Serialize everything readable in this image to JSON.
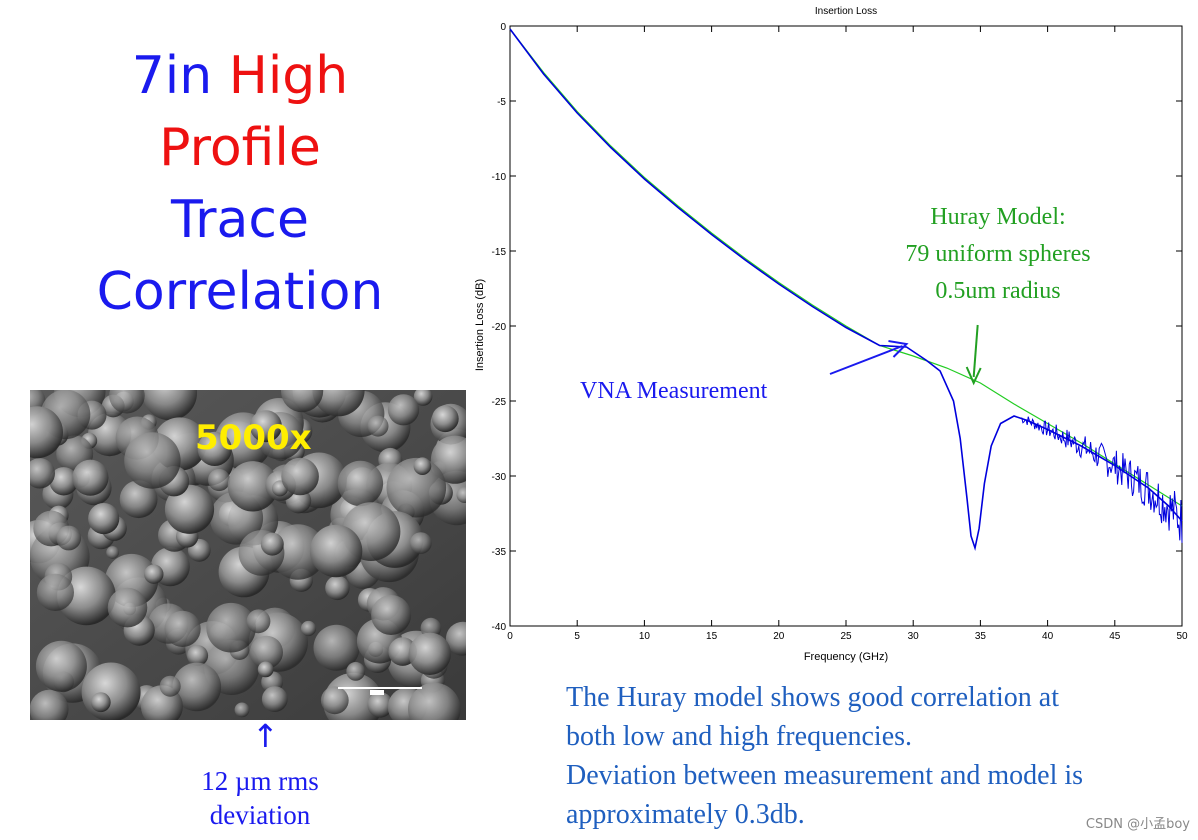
{
  "slide": {
    "title_line1_a": "7in",
    "title_line1_b": "High",
    "title_line2": "Profile",
    "title_line3": "Trace",
    "title_line4": "Correlation",
    "magnification": "5000x",
    "deviation_line1": "12 µm rms",
    "deviation_line2": "deviation",
    "caption_line1": "The Huray model shows good correlation at",
    "caption_line2": "both low and high frequencies.",
    "caption_line3": "Deviation between measurement and model is",
    "caption_line4": "approximately 0.3db.",
    "watermark": "CSDN @小孟boy"
  },
  "chart_data": {
    "type": "line",
    "title": "Insertion Loss",
    "xlabel": "Frequency (GHz)",
    "ylabel": "Insertion Loss (dB)",
    "xlim": [
      0,
      50
    ],
    "ylim": [
      -40,
      0
    ],
    "xticks": [
      0,
      5,
      10,
      15,
      20,
      25,
      30,
      35,
      40,
      45,
      50
    ],
    "yticks": [
      0,
      -5,
      -10,
      -15,
      -20,
      -25,
      -30,
      -35,
      -40
    ],
    "grid": false,
    "colors": {
      "measurement": "#0000dd",
      "model": "#22cc22"
    },
    "annotations": [
      {
        "lines": [
          "Huray Model:",
          "79 uniform spheres",
          "0.5um radius"
        ],
        "color": "#22a022",
        "arrow_to": [
          34.5,
          -23.8
        ]
      },
      {
        "lines": [
          "VNA Measurement"
        ],
        "color": "#1a1aee",
        "arrow_to": [
          29.5,
          -21.2
        ]
      }
    ],
    "series": [
      {
        "key": "model",
        "x": [
          0,
          2.5,
          5,
          7.5,
          10,
          12.5,
          15,
          17.5,
          20,
          22.5,
          25,
          27.5,
          30,
          32.5,
          35,
          37.5,
          40,
          42.5,
          45,
          47.5,
          50
        ],
        "y": [
          -0.2,
          -3.1,
          -5.7,
          -8.0,
          -10.1,
          -12.0,
          -13.8,
          -15.5,
          -17.1,
          -18.6,
          -20.0,
          -21.3,
          -22.0,
          -22.8,
          -23.8,
          -25.2,
          -26.5,
          -27.8,
          -29.2,
          -30.6,
          -32.0
        ]
      },
      {
        "key": "measurement",
        "x": [
          0,
          2.5,
          5,
          7.5,
          10,
          12.5,
          15,
          17.5,
          20,
          22.5,
          25,
          27.5,
          29.5,
          31,
          32,
          33,
          33.5,
          34,
          34.3,
          34.6,
          34.9,
          35.3,
          35.8,
          36.5,
          37.5,
          38.5,
          40,
          42.5,
          45,
          47.5,
          49,
          50
        ],
        "y": [
          -0.2,
          -3.2,
          -5.8,
          -8.1,
          -10.2,
          -12.1,
          -13.9,
          -15.6,
          -17.2,
          -18.7,
          -20.1,
          -21.3,
          -21.4,
          -22.3,
          -23.0,
          -25.0,
          -27.5,
          -31.5,
          -34.0,
          -34.8,
          -33.5,
          -30.5,
          -28.0,
          -26.5,
          -26.0,
          -26.3,
          -26.9,
          -28.0,
          -29.3,
          -30.8,
          -32.0,
          -33.0
        ]
      }
    ]
  }
}
